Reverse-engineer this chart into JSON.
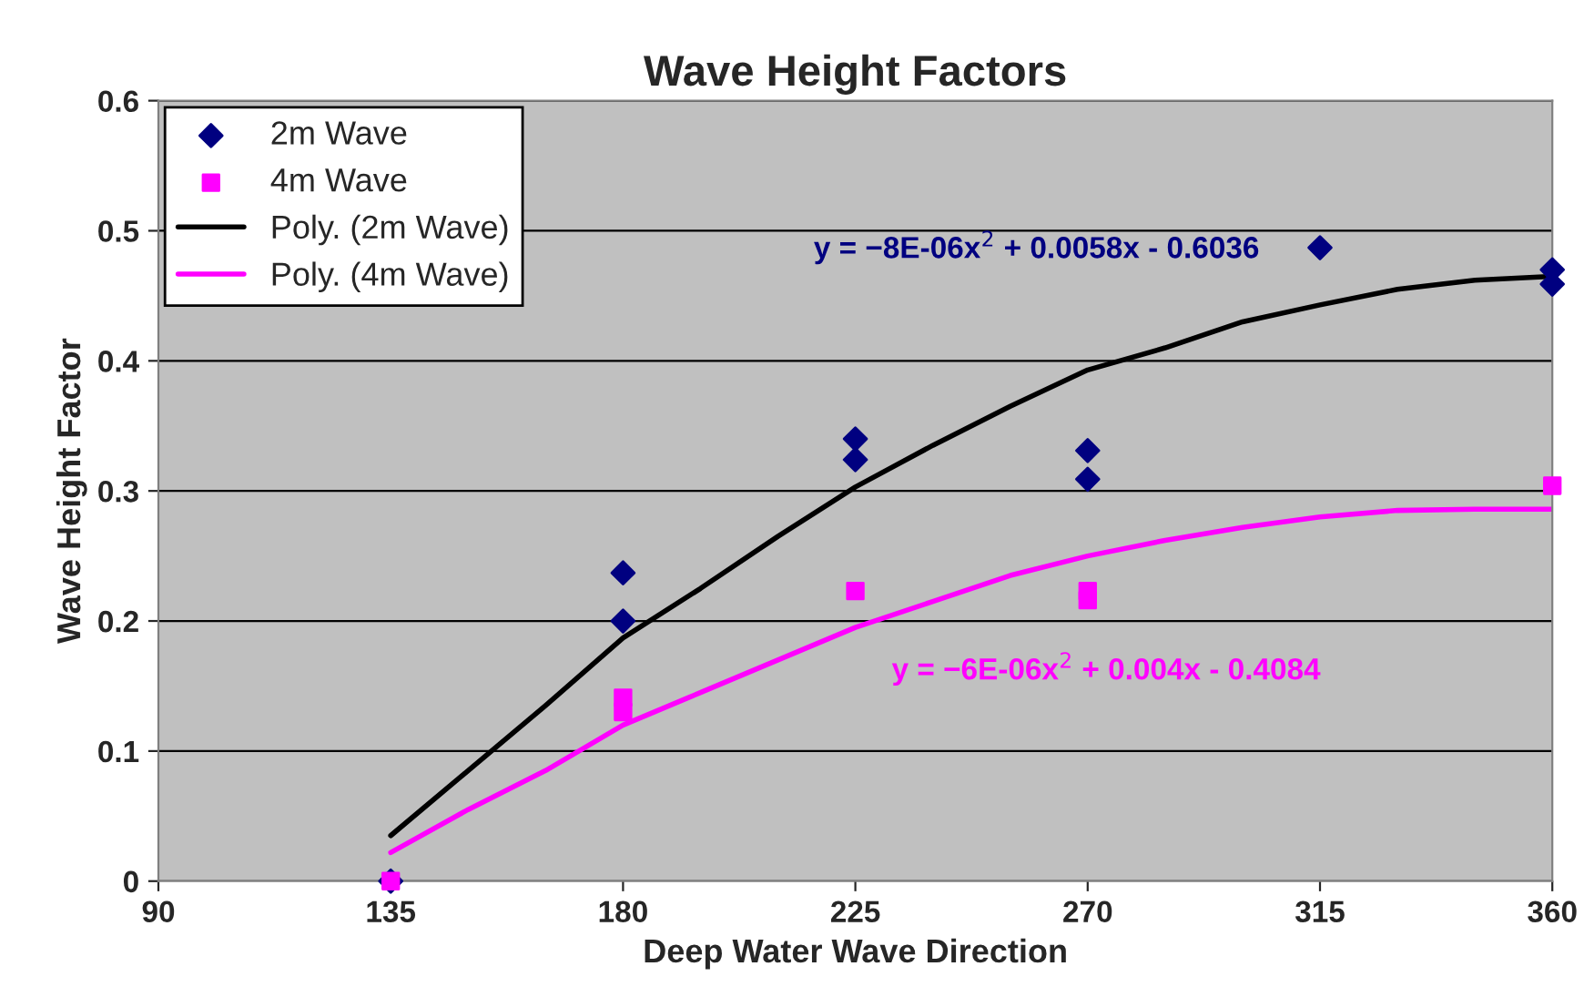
{
  "chart_data": {
    "type": "scatter",
    "title": "Wave Height Factors",
    "xlabel": "Deep Water Wave Direction",
    "ylabel": "Wave Height Factor",
    "xlim": [
      90,
      360
    ],
    "xticks": [
      90,
      135,
      180,
      225,
      270,
      315,
      360
    ],
    "ylim": [
      0,
      0.6
    ],
    "yticks": [
      0,
      0.1,
      0.2,
      0.3,
      0.4,
      0.5,
      0.6
    ],
    "grid": "y",
    "legend": "top left",
    "series": [
      {
        "name": "2m Wave",
        "marker": "diamond",
        "color": "#000080",
        "x": [
          135,
          180,
          180,
          225,
          225,
          270,
          270,
          315,
          360,
          360
        ],
        "values": [
          0,
          0.237,
          0.2,
          0.34,
          0.324,
          0.331,
          0.309,
          0.487,
          0.47,
          0.459
        ]
      },
      {
        "name": "4m Wave",
        "marker": "square",
        "color": "#ff00ff",
        "x": [
          135,
          180,
          180,
          225,
          270,
          270,
          360
        ],
        "values": [
          0,
          0.141,
          0.13,
          0.223,
          0.223,
          0.216,
          0.304
        ]
      },
      {
        "name": "Poly. (2m Wave)",
        "type": "line",
        "marker": "none",
        "color": "#000000",
        "x": [
          135,
          150,
          165,
          180,
          195,
          210,
          225,
          240,
          255,
          270,
          285,
          300,
          315,
          330,
          345,
          360
        ],
        "values": [
          0.035,
          0.085,
          0.135,
          0.187,
          0.225,
          0.265,
          0.303,
          0.335,
          0.365,
          0.393,
          0.41,
          0.43,
          0.443,
          0.455,
          0.462,
          0.465
        ]
      },
      {
        "name": "Poly. (4m Wave)",
        "type": "line",
        "marker": "none",
        "color": "#ff00ff",
        "x": [
          135,
          150,
          165,
          180,
          195,
          210,
          225,
          240,
          255,
          270,
          285,
          300,
          315,
          330,
          345,
          360
        ],
        "values": [
          0.022,
          0.055,
          0.085,
          0.12,
          0.145,
          0.17,
          0.195,
          0.215,
          0.235,
          0.25,
          0.262,
          0.272,
          0.28,
          0.285,
          0.286,
          0.286
        ]
      }
    ],
    "annotations": [
      "y = −8E-06x$^{2}$ + 0.0058x - 0.6036",
      "y = −6E-06x$^{2}$ + 0.004x - 0.4084"
    ]
  }
}
